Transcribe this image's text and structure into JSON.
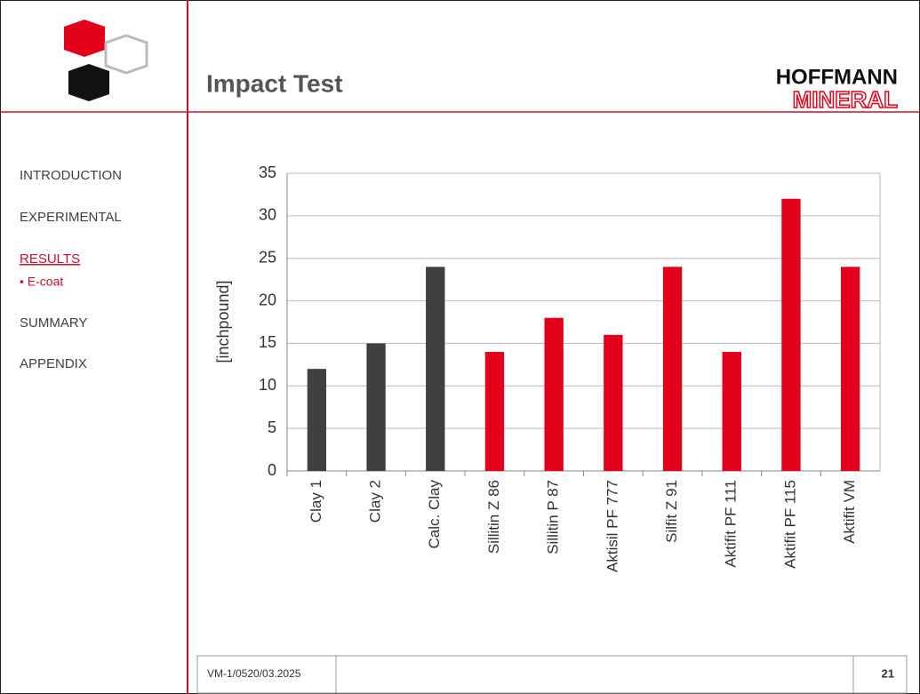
{
  "logo": {
    "line1": "HOFFMANN",
    "line2": "MINERAL"
  },
  "nav": [
    "INTRODUCTION",
    "EXPERIMENTAL",
    "RESULTS",
    "• E-coat",
    "SUMMARY",
    "APPENDIX"
  ],
  "footer": {
    "code": "VM-1/0520/03.2025",
    "page": "21"
  },
  "chart_data": {
    "type": "bar",
    "title": "Impact Test",
    "y_label": "[inchpound]",
    "categories": [
      "Clay 1",
      "Clay 2",
      "Calc. Clay",
      "Sillitin Z 86",
      "Sillitin P 87",
      "Aktisil PF 777",
      "Silfit Z 91",
      "Aktifit PF 111",
      "Aktifit PF 115",
      "Aktifit VM"
    ],
    "values": [
      12,
      15,
      24,
      14,
      18,
      16,
      24,
      14,
      32,
      24
    ],
    "colors": [
      "#404040",
      "#404040",
      "#404040",
      "#e2001a",
      "#e2001a",
      "#e2001a",
      "#e2001a",
      "#e2001a",
      "#e2001a",
      "#e2001a"
    ],
    "ylim": [
      0,
      35
    ],
    "yticks": [
      0,
      5,
      10,
      15,
      20,
      25,
      30,
      35
    ],
    "grid": true
  }
}
